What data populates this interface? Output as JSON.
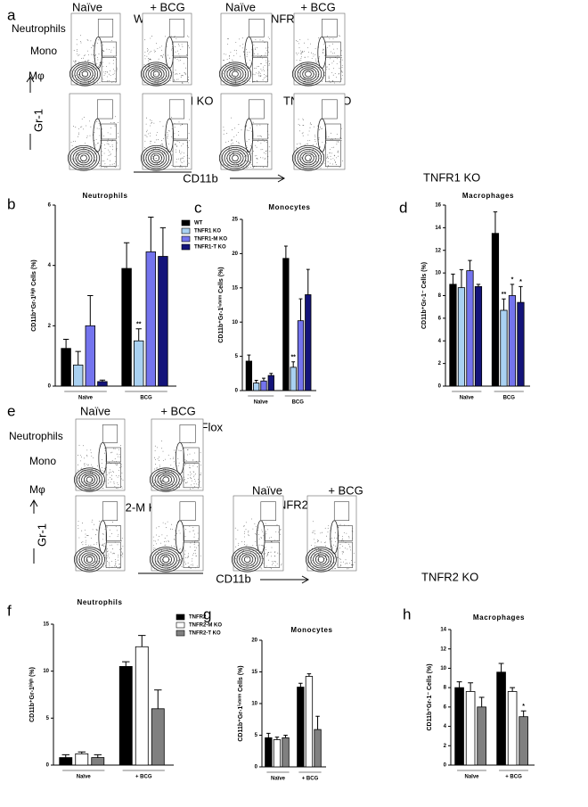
{
  "flow_a": {
    "letter": "a",
    "columns": [
      "Naïve",
      "+ BCG",
      "Naïve",
      "+ BCG"
    ],
    "gates": [
      "Neutrophils",
      "Mono",
      "Mφ"
    ],
    "groups": [
      "WT",
      "TNFR1 KO",
      "TNFR1-M KO",
      "TNFR1-T KO"
    ],
    "y_axis": "Gr-1",
    "x_axis": "CD11b",
    "section": "TNFR1 KO"
  },
  "flow_e": {
    "letter": "e",
    "columns": [
      "Naïve",
      "+ BCG",
      "Naïve",
      "+ BCG"
    ],
    "gates": [
      "Neutrophils",
      "Mono",
      "Mφ"
    ],
    "groups": [
      "TNFR2 Flox",
      "TNFR2-M  KO",
      "TNFR2-T KO"
    ],
    "y_axis": "Gr-1",
    "x_axis": "CD11b",
    "section": "TNFR2 KO"
  },
  "chart_data": [
    {
      "type": "bar",
      "letter": "b",
      "title": "Neutrophils",
      "ylabel": "CD11b⁺Gr-1ʰⁱᵍʰ Cells (%)",
      "categories": [
        "Naïve",
        "BCG"
      ],
      "ylim": [
        0,
        6
      ],
      "yticks": [
        0,
        2,
        4,
        6
      ],
      "legend": "right",
      "series": [
        {
          "name": "WT",
          "color": "#000000",
          "values": [
            1.25,
            3.9
          ],
          "errors": [
            0.3,
            0.85
          ]
        },
        {
          "name": "TNFR1 KO",
          "color": "#a9d1f2",
          "values": [
            0.7,
            1.5
          ],
          "errors": [
            0.45,
            0.4
          ],
          "annotations": [
            null,
            "**"
          ]
        },
        {
          "name": "TNFR1-M KO",
          "color": "#7474ee",
          "values": [
            2.0,
            4.45
          ],
          "errors": [
            1.0,
            1.15
          ]
        },
        {
          "name": "TNFR1-T KO",
          "color": "#14147a",
          "values": [
            0.15,
            4.3
          ],
          "errors": [
            0.05,
            0.95
          ]
        }
      ]
    },
    {
      "type": "bar",
      "letter": "c",
      "title": "Monocytes",
      "ylabel": "CD11b⁺Gr-1ⁱⁿᵗᵉʳᵐ Cells (%)",
      "categories": [
        "Naïve",
        "BCG"
      ],
      "ylim": [
        0,
        25
      ],
      "yticks": [
        0,
        5,
        10,
        15,
        20,
        25
      ],
      "series": [
        {
          "color": "#000000",
          "values": [
            4.3,
            19.3
          ],
          "errors": [
            0.9,
            1.8
          ]
        },
        {
          "color": "#a9d1f2",
          "values": [
            1.1,
            3.4
          ],
          "errors": [
            0.4,
            0.8
          ],
          "annotations": [
            null,
            "**"
          ]
        },
        {
          "color": "#7474ee",
          "values": [
            1.4,
            10.2
          ],
          "errors": [
            0.4,
            3.2
          ]
        },
        {
          "color": "#14147a",
          "values": [
            2.2,
            14.0
          ],
          "errors": [
            0.3,
            3.7
          ]
        }
      ]
    },
    {
      "type": "bar",
      "letter": "d",
      "title": "Macrophages",
      "ylabel": "CD11b⁺Gr-1⁻ Cells (%)",
      "categories": [
        "Naïve",
        "BCG"
      ],
      "ylim": [
        0,
        16
      ],
      "yticks": [
        0,
        2,
        4,
        6,
        8,
        10,
        12,
        14,
        16
      ],
      "series": [
        {
          "color": "#000000",
          "values": [
            9.0,
            13.5
          ],
          "errors": [
            0.9,
            1.9
          ]
        },
        {
          "color": "#a9d1f2",
          "values": [
            8.7,
            6.7
          ],
          "errors": [
            1.6,
            1.0
          ],
          "annotations": [
            null,
            "**"
          ]
        },
        {
          "color": "#7474ee",
          "values": [
            10.2,
            8.0
          ],
          "errors": [
            0.9,
            1.0
          ],
          "annotations": [
            null,
            "*"
          ]
        },
        {
          "color": "#14147a",
          "values": [
            8.8,
            7.4
          ],
          "errors": [
            0.2,
            1.4
          ],
          "annotations": [
            null,
            "*"
          ]
        }
      ]
    },
    {
      "type": "bar",
      "letter": "f",
      "title": "Neutrophils",
      "ylabel": "CD11b⁺Gr-1ʰⁱᵍʰ (%)",
      "categories": [
        "Naïve",
        "+ BCG"
      ],
      "ylim": [
        0,
        15
      ],
      "yticks": [
        0,
        5,
        10,
        15
      ],
      "legend": "right",
      "series": [
        {
          "name": "TNFR2",
          "color": "#000000",
          "values": [
            0.8,
            10.5
          ],
          "errors": [
            0.3,
            0.5
          ]
        },
        {
          "name": "TNFR2-M KO",
          "color": "#ffffff",
          "values": [
            1.2,
            12.6
          ],
          "errors": [
            0.2,
            1.2
          ]
        },
        {
          "name": "TNFR2-T KO",
          "color": "#808080",
          "values": [
            0.8,
            6.0
          ],
          "errors": [
            0.3,
            2.0
          ]
        }
      ]
    },
    {
      "type": "bar",
      "letter": "g",
      "title": "Monocytes",
      "ylabel": "CD11b⁺Gr-1ⁱⁿᵗᵉʳᵐ Cells (%)",
      "categories": [
        "Naïve",
        "+ BCG"
      ],
      "ylim": [
        0,
        20
      ],
      "yticks": [
        0,
        5,
        10,
        15,
        20
      ],
      "series": [
        {
          "color": "#000000",
          "values": [
            4.6,
            12.6
          ],
          "errors": [
            0.7,
            0.6
          ]
        },
        {
          "color": "#ffffff",
          "values": [
            4.3,
            14.3
          ],
          "errors": [
            0.4,
            0.4
          ]
        },
        {
          "color": "#808080",
          "values": [
            4.6,
            5.9
          ],
          "errors": [
            0.4,
            2.1
          ]
        }
      ]
    },
    {
      "type": "bar",
      "letter": "h",
      "title": "Macrophages",
      "ylabel": "CD11b⁺Gr-1⁻ Cells (%)",
      "categories": [
        "Naïve",
        "+ BCG"
      ],
      "ylim": [
        0,
        14
      ],
      "yticks": [
        0,
        2,
        4,
        6,
        8,
        10,
        12,
        14
      ],
      "series": [
        {
          "color": "#000000",
          "values": [
            8.0,
            9.6
          ],
          "errors": [
            0.6,
            0.9
          ]
        },
        {
          "color": "#ffffff",
          "values": [
            7.6,
            7.6
          ],
          "errors": [
            0.9,
            0.4
          ]
        },
        {
          "color": "#808080",
          "values": [
            6.0,
            5.0
          ],
          "errors": [
            1.0,
            0.6
          ],
          "annotations": [
            null,
            "*"
          ]
        }
      ]
    }
  ]
}
